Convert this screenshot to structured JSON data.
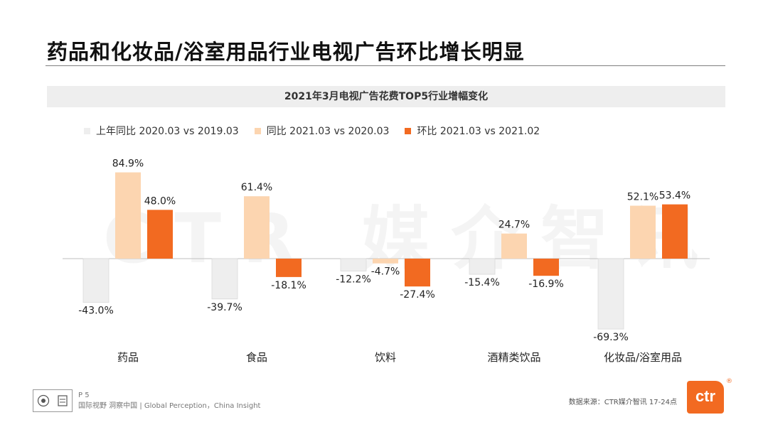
{
  "page": {
    "title": "药品和化妆品/浴室用品行业电视广告环比增长明显",
    "page_number": "P 5",
    "tagline": "国际视野  洞察中国 |  Global Perception，China Insight",
    "source": "数据来源：CTR媒介智讯    17-24点",
    "brand_logo": "ctr",
    "registered_mark": "®",
    "watermark": "CTR 媒介智讯"
  },
  "colors": {
    "series_prev_yoy": "#eeeeee",
    "series_yoy": "#fcd5b0",
    "series_mom": "#f26a21",
    "accent": "#f26a21"
  },
  "chart_data": {
    "type": "bar",
    "title": "2021年3月电视广告花费TOP5行业增幅变化",
    "categories": [
      "药品",
      "食品",
      "饮料",
      "酒精类饮品",
      "化妆品/浴室用品"
    ],
    "series": [
      {
        "name": "上年同比 2020.03 vs 2019.03",
        "values": [
          -43.0,
          -39.7,
          -12.2,
          -15.4,
          -69.3
        ]
      },
      {
        "name": "同比 2021.03 vs 2020.03",
        "values": [
          84.9,
          61.4,
          -4.7,
          24.7,
          52.1
        ]
      },
      {
        "name": "环比 2021.03 vs 2021.02",
        "values": [
          48.0,
          -18.1,
          -27.4,
          -16.9,
          53.4
        ]
      }
    ],
    "labels": [
      [
        "-43.0%",
        "-39.7%",
        "-12.2%",
        "-15.4%",
        "-69.3%"
      ],
      [
        "84.9%",
        "61.4%",
        "-4.7%",
        "24.7%",
        "52.1%"
      ],
      [
        "48.0%",
        "-18.1%",
        "-27.4%",
        "-16.9%",
        "53.4%"
      ]
    ],
    "xlabel": "",
    "ylabel": "",
    "ylim": [
      -70,
      90
    ],
    "grid": false,
    "legend": "top-left"
  }
}
